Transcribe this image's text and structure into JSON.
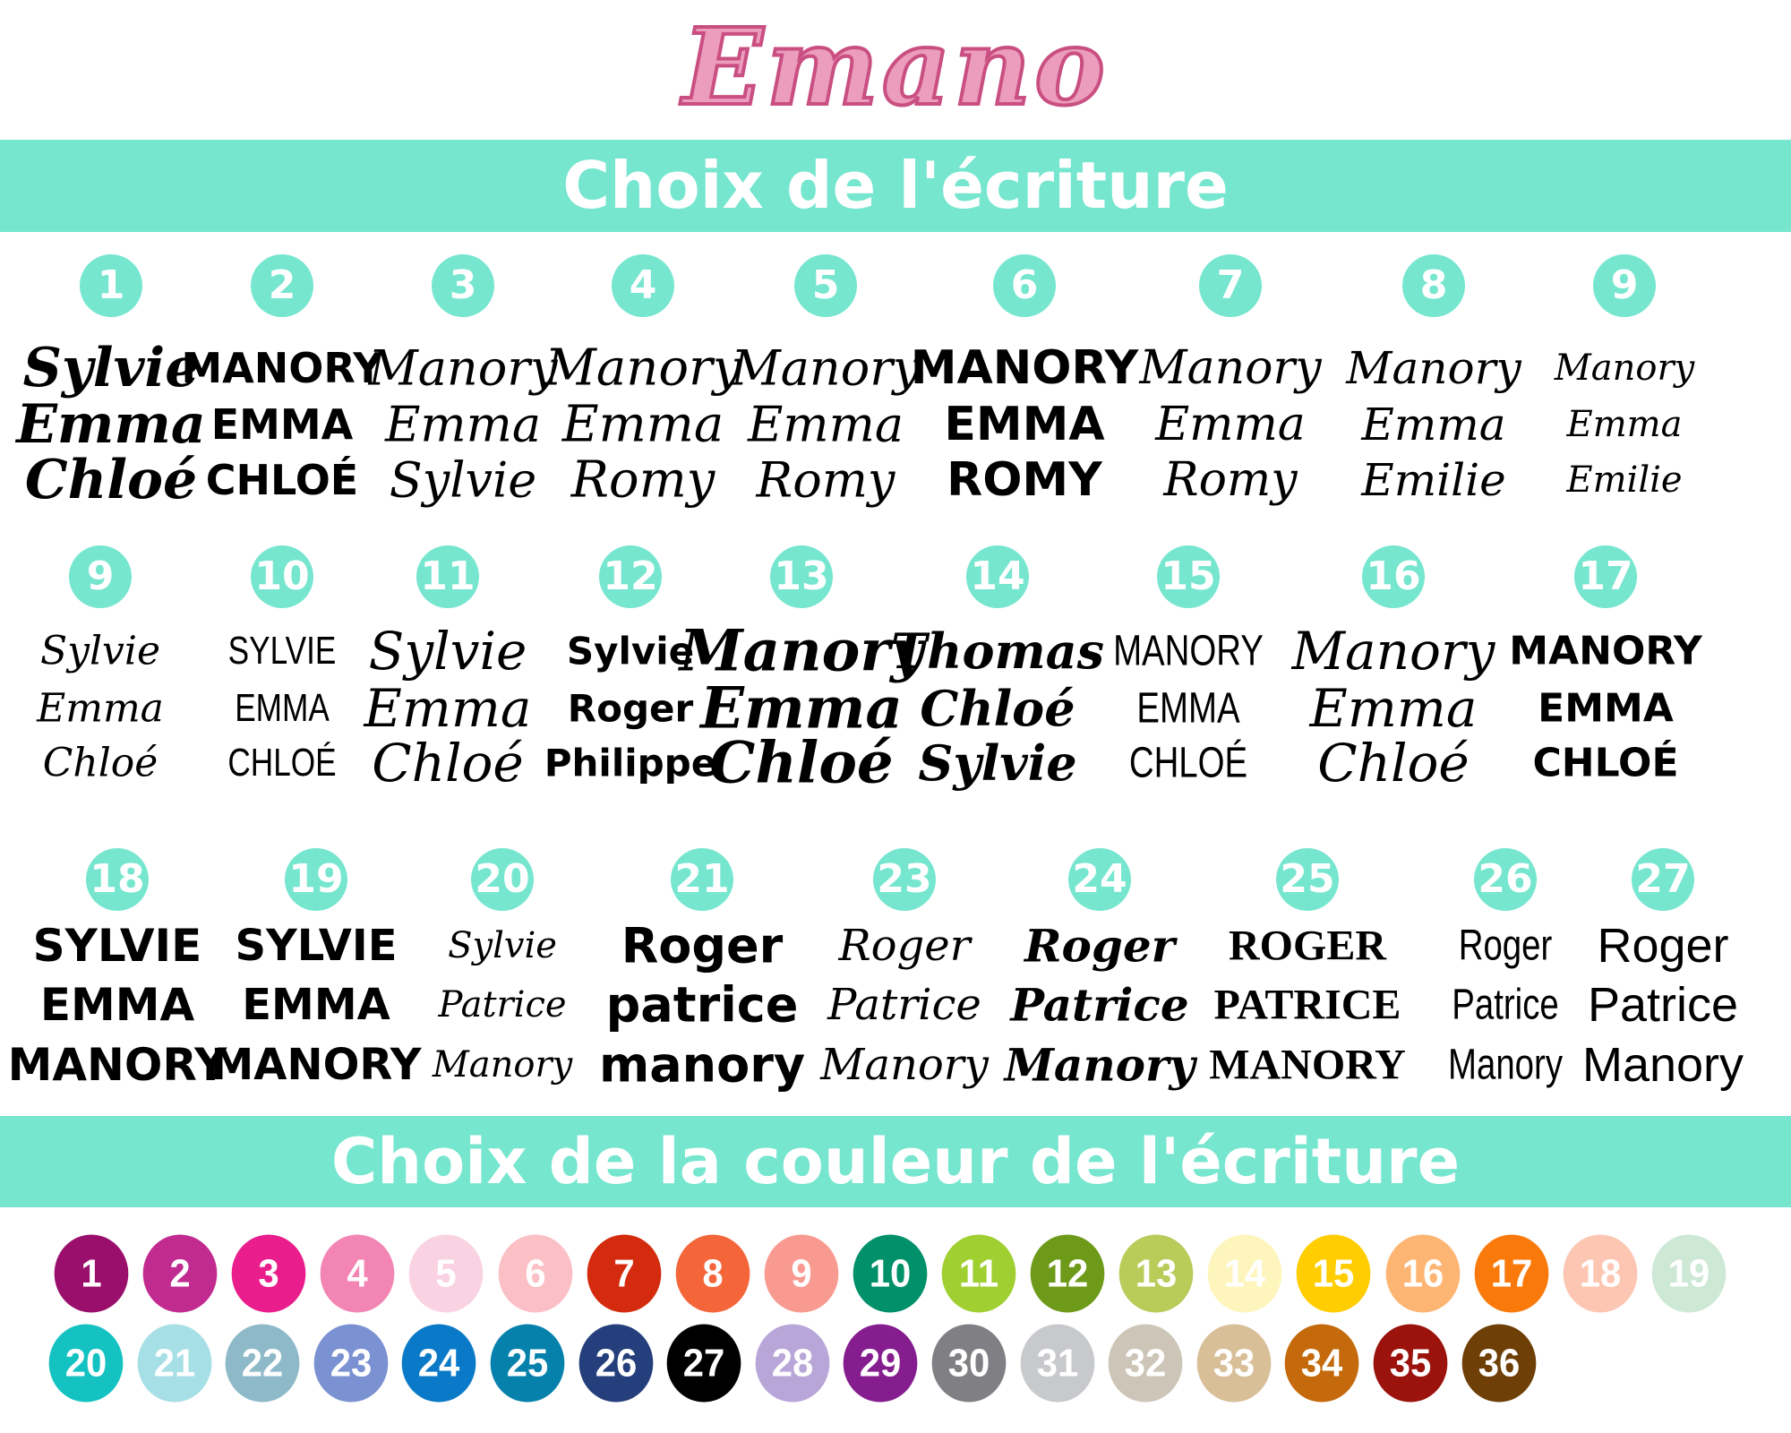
{
  "logo": "Emano",
  "brand_colors": {
    "banner": "#76e6cf",
    "logo": "#ec9cbd"
  },
  "fonts_title": "Choix de l'écriture",
  "colors_title": "Choix de la couleur de l'écriture",
  "font_samples": [
    {
      "number": "1",
      "lines": [
        "Sylvie",
        "Emma",
        "Chloé"
      ]
    },
    {
      "number": "2",
      "lines": [
        "MANORY",
        "EMMA",
        "CHLOÉ"
      ]
    },
    {
      "number": "3",
      "lines": [
        "Manory",
        "Emma",
        "Sylvie"
      ]
    },
    {
      "number": "4",
      "lines": [
        "Manory",
        "Emma",
        "Romy"
      ]
    },
    {
      "number": "5",
      "lines": [
        "Manory",
        "Emma",
        "Romy"
      ]
    },
    {
      "number": "6",
      "lines": [
        "MANORY",
        "EMMA",
        "ROMY"
      ]
    },
    {
      "number": "7",
      "lines": [
        "Manory",
        "Emma",
        "Romy"
      ]
    },
    {
      "number": "8",
      "lines": [
        "Manory",
        "Emma",
        "Emilie"
      ]
    },
    {
      "number": "9",
      "lines": [
        "Manory",
        "Emma",
        "Emilie"
      ]
    },
    {
      "number": "9",
      "lines": [
        "Sylvie",
        "Emma",
        "Chloé"
      ]
    },
    {
      "number": "10",
      "lines": [
        "SYLVIE",
        "EMMA",
        "CHLOÉ"
      ]
    },
    {
      "number": "11",
      "lines": [
        "Sylvie",
        "Emma",
        "Chloé"
      ]
    },
    {
      "number": "12",
      "lines": [
        "Sylvie",
        "Roger",
        "Philippe"
      ]
    },
    {
      "number": "13",
      "lines": [
        "Manory",
        "Emma",
        "Chloé"
      ]
    },
    {
      "number": "14",
      "lines": [
        "Thomas",
        "Chloé",
        "Sylvie"
      ]
    },
    {
      "number": "15",
      "lines": [
        "MANORY",
        "EMMA",
        "CHLOÉ"
      ]
    },
    {
      "number": "16",
      "lines": [
        "Manory",
        "Emma",
        "Chloé"
      ]
    },
    {
      "number": "17",
      "lines": [
        "MANORY",
        "EMMA",
        "CHLOÉ"
      ]
    },
    {
      "number": "18",
      "lines": [
        "SYLVIE",
        "EMMA",
        "MANORY"
      ]
    },
    {
      "number": "19",
      "lines": [
        "SYLVIE",
        "EMMA",
        "MANORY"
      ]
    },
    {
      "number": "20",
      "lines": [
        "Sylvie",
        "Patrice",
        "Manory"
      ]
    },
    {
      "number": "21",
      "lines": [
        "Roger",
        "patrice",
        "manory"
      ]
    },
    {
      "number": "23",
      "lines": [
        "Roger",
        "Patrice",
        "Manory"
      ]
    },
    {
      "number": "24",
      "lines": [
        "Roger",
        "Patrice",
        "Manory"
      ]
    },
    {
      "number": "25",
      "lines": [
        "ROGER",
        "PATRICE",
        "MANORY"
      ]
    },
    {
      "number": "26",
      "lines": [
        "Roger",
        "Patrice",
        "Manory"
      ]
    },
    {
      "number": "27",
      "lines": [
        "Roger",
        "Patrice",
        "Manory"
      ]
    }
  ],
  "color_swatches": [
    {
      "number": "1",
      "color": "#9a0f6b"
    },
    {
      "number": "2",
      "color": "#c12b8f"
    },
    {
      "number": "3",
      "color": "#e91e8c"
    },
    {
      "number": "4",
      "color": "#f285b3"
    },
    {
      "number": "5",
      "color": "#fad3e3"
    },
    {
      "number": "6",
      "color": "#fbbfc6"
    },
    {
      "number": "7",
      "color": "#d42b0e"
    },
    {
      "number": "8",
      "color": "#f4663a"
    },
    {
      "number": "9",
      "color": "#f89a8f"
    },
    {
      "number": "10",
      "color": "#00906a"
    },
    {
      "number": "11",
      "color": "#9fcf30"
    },
    {
      "number": "12",
      "color": "#6e9a1a"
    },
    {
      "number": "13",
      "color": "#b9cc5a"
    },
    {
      "number": "14",
      "color": "#fef5bd"
    },
    {
      "number": "15",
      "color": "#ffcd00"
    },
    {
      "number": "16",
      "color": "#fdb574"
    },
    {
      "number": "17",
      "color": "#f97a0a"
    },
    {
      "number": "18",
      "color": "#fcc6b2"
    },
    {
      "number": "19",
      "color": "#cde8d5"
    },
    {
      "number": "20",
      "color": "#14c2c2"
    },
    {
      "number": "21",
      "color": "#a6dfe6"
    },
    {
      "number": "22",
      "color": "#8db9c8"
    },
    {
      "number": "23",
      "color": "#7b92d2"
    },
    {
      "number": "24",
      "color": "#0a7ac8"
    },
    {
      "number": "25",
      "color": "#0681ab"
    },
    {
      "number": "26",
      "color": "#253e7c"
    },
    {
      "number": "27",
      "color": "#000000"
    },
    {
      "number": "28",
      "color": "#b9a6d8"
    },
    {
      "number": "29",
      "color": "#861d8f"
    },
    {
      "number": "30",
      "color": "#808084"
    },
    {
      "number": "31",
      "color": "#c8c9cc"
    },
    {
      "number": "32",
      "color": "#cdc6b8"
    },
    {
      "number": "33",
      "color": "#d8bf98"
    },
    {
      "number": "34",
      "color": "#c46a0c"
    },
    {
      "number": "35",
      "color": "#9b130c"
    },
    {
      "number": "36",
      "color": "#6e4008"
    }
  ]
}
